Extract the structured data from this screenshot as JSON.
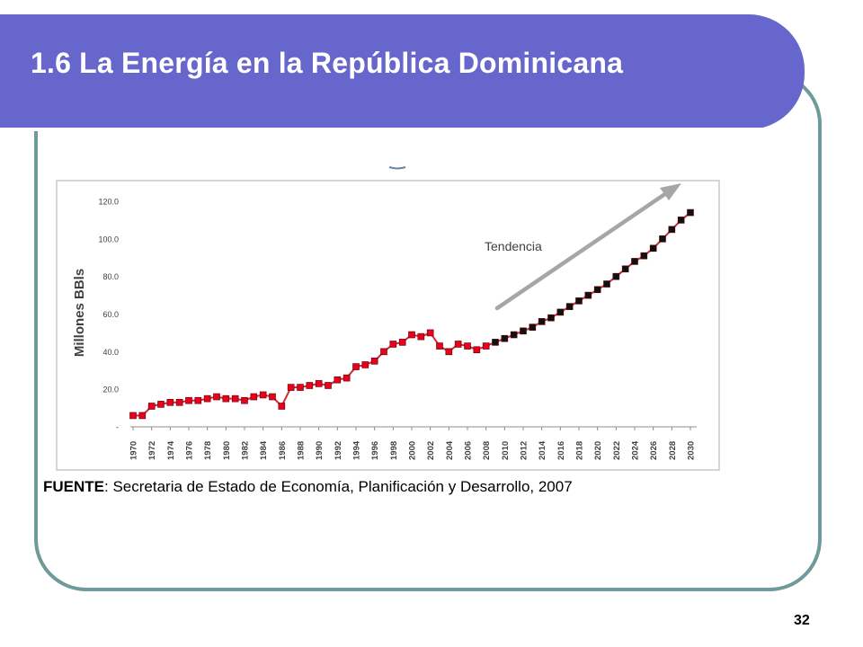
{
  "slide": {
    "title": "1.6 La Energía en la República Dominicana",
    "page_number": "32",
    "source_label": "FUENTE",
    "source_text": ": Secretaria de Estado de Economía, Planificación y Desarrollo, 2007"
  },
  "colors": {
    "header": "#6666cc",
    "frame": "#6f9a9a",
    "historic_marker": "#e8001c",
    "projection_marker": "#111111",
    "line": "#cc2b3c",
    "trend_arrow": "#a6a6a6"
  },
  "chart_data": {
    "type": "line",
    "title": "",
    "xlabel": "",
    "ylabel": "Millones BBls",
    "ylim": [
      0,
      120
    ],
    "yticks": [
      "-",
      "20.0",
      "40.0",
      "60.0",
      "80.0",
      "100.0",
      "120.0"
    ],
    "xticks": [
      "1970",
      "1972",
      "1974",
      "1976",
      "1978",
      "1980",
      "1982",
      "1984",
      "1986",
      "1988",
      "1990",
      "1992",
      "1994",
      "1996",
      "1998",
      "2000",
      "2002",
      "2004",
      "2006",
      "2008",
      "2010",
      "2012",
      "2014",
      "2016",
      "2018",
      "2020",
      "2022",
      "2024",
      "2026",
      "2028",
      "2030"
    ],
    "annotation": "Tendencia",
    "grid": false,
    "series": [
      {
        "marker_color": "#e8001c",
        "x": [
          1970,
          1971,
          1972,
          1973,
          1974,
          1975,
          1976,
          1977,
          1978,
          1979,
          1980,
          1981,
          1982,
          1983,
          1984,
          1985,
          1986,
          1987,
          1988,
          1989,
          1990,
          1991,
          1992,
          1993,
          1994,
          1995,
          1996,
          1997,
          1998,
          1999,
          2000,
          2001,
          2002,
          2003,
          2004,
          2005,
          2006,
          2007,
          2008
        ],
        "y": [
          6,
          6,
          11,
          12,
          13,
          13,
          14,
          14,
          15,
          16,
          15,
          15,
          14,
          16,
          17,
          16,
          11,
          21,
          21,
          22,
          23,
          22,
          25,
          26,
          32,
          33,
          35,
          40,
          44,
          45,
          49,
          48,
          50,
          43,
          40,
          44,
          43,
          41,
          43
        ]
      },
      {
        "marker_color": "#111111",
        "x": [
          2009,
          2010,
          2011,
          2012,
          2013,
          2014,
          2015,
          2016,
          2017,
          2018,
          2019,
          2020,
          2021,
          2022,
          2023,
          2024,
          2025,
          2026,
          2027,
          2028,
          2029,
          2030
        ],
        "y": [
          45,
          47,
          49,
          51,
          53,
          56,
          58,
          61,
          64,
          67,
          70,
          73,
          76,
          80,
          84,
          88,
          91,
          95,
          100,
          105,
          110,
          114
        ]
      }
    ]
  }
}
